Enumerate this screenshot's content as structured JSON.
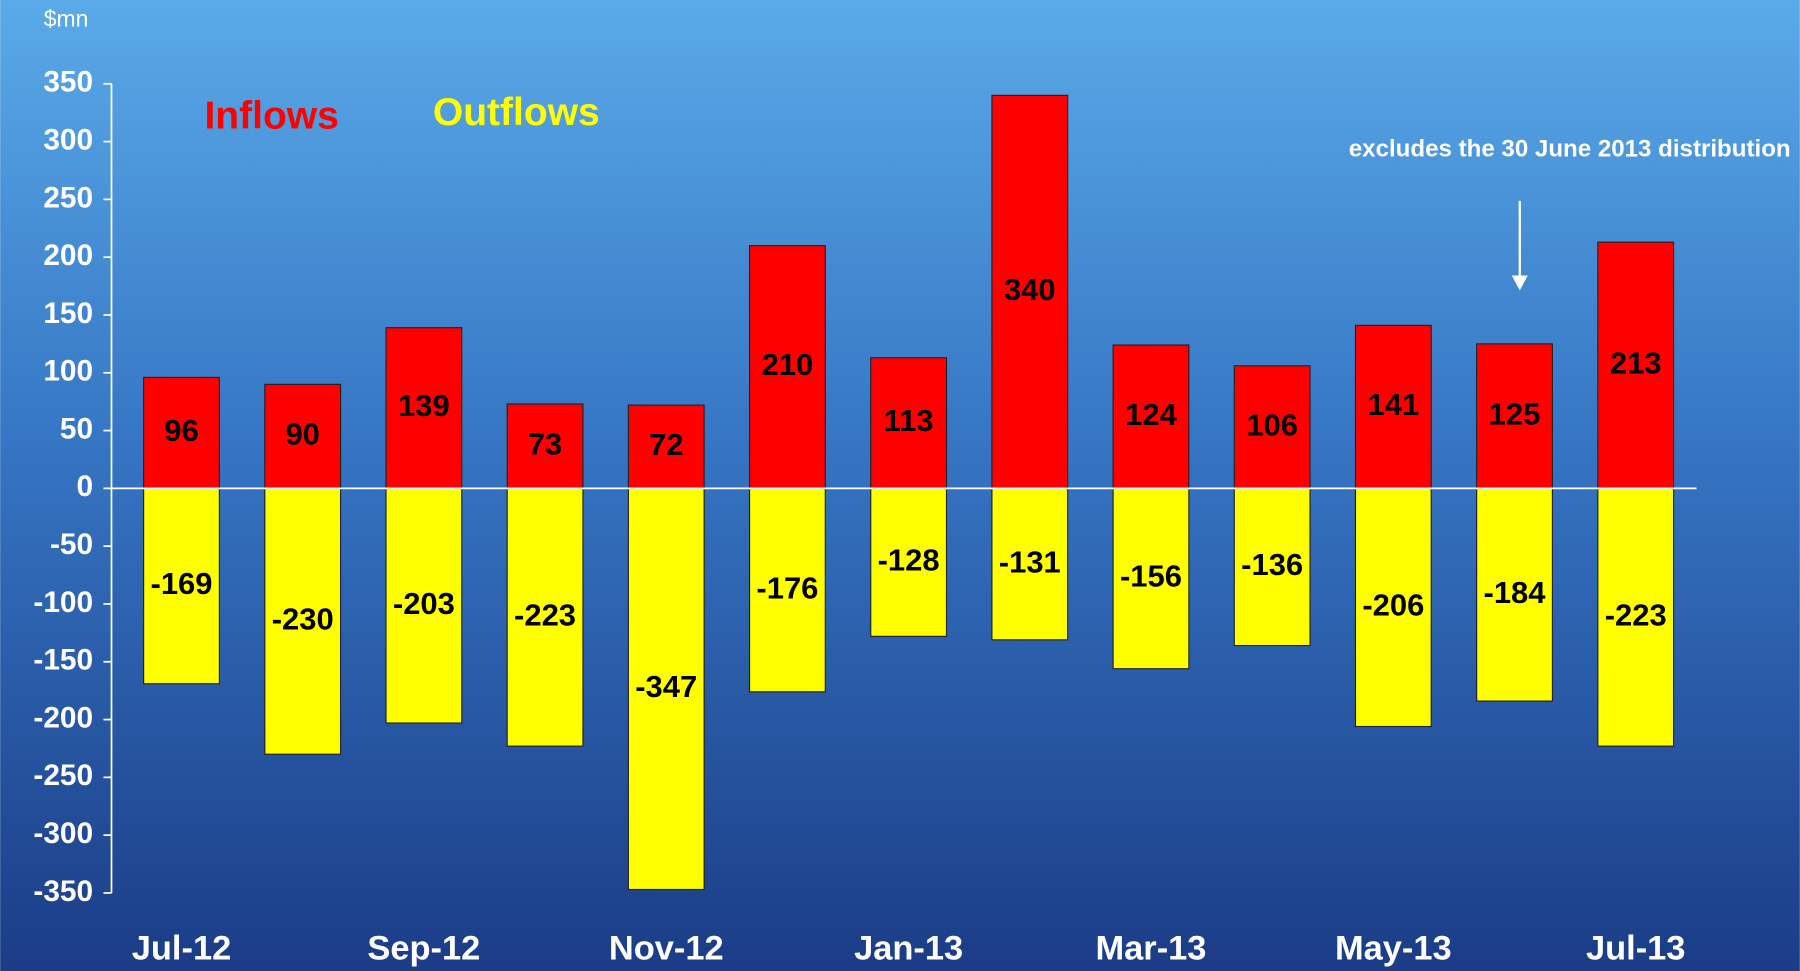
{
  "chart_data": {
    "type": "bar",
    "y_axis_label": "$mn",
    "annotation": "excludes the 30 June 2013 distribution",
    "categories": [
      "Jul-12",
      null,
      "Sep-12",
      null,
      "Nov-12",
      null,
      "Jan-13",
      null,
      "Mar-13",
      null,
      "May-13",
      null,
      "Jul-13"
    ],
    "series": [
      {
        "name": "Inflows",
        "color": "#ff0000",
        "values": [
          96,
          90,
          139,
          73,
          72,
          210,
          113,
          340,
          124,
          106,
          141,
          125,
          213
        ]
      },
      {
        "name": "Outflows",
        "color": "#ffff00",
        "values": [
          -169,
          -230,
          -203,
          -223,
          -347,
          -176,
          -128,
          -131,
          -156,
          -136,
          -206,
          -184,
          -223
        ]
      }
    ],
    "ylim": [
      -350,
      350
    ],
    "yticks": [
      -350,
      -300,
      -250,
      -200,
      -150,
      -100,
      -50,
      0,
      50,
      100,
      150,
      200,
      250,
      300,
      350
    ]
  }
}
